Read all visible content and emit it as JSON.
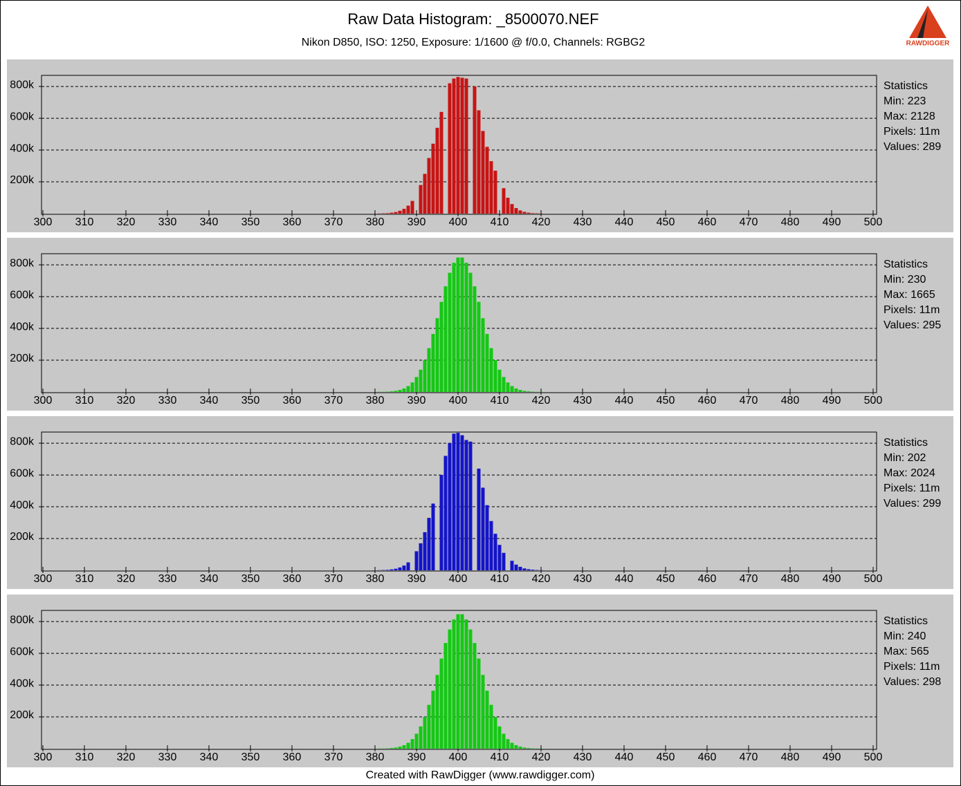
{
  "title": "Raw Data Histogram:  _8500070.NEF",
  "subtitle": "Nikon D850, ISO: 1250, Exposure: 1/1600 @ f/0.0, Channels: RGBG2",
  "logo": "RAWDIGGER",
  "footer": "Created with RawDigger (www.rawdigger.com)",
  "chart_data": [
    {
      "type": "bar",
      "color": "#c81414",
      "x": [
        380,
        381,
        382,
        383,
        384,
        385,
        386,
        387,
        388,
        389,
        390,
        391,
        392,
        393,
        394,
        395,
        396,
        397,
        398,
        399,
        400,
        401,
        402,
        403,
        404,
        405,
        406,
        407,
        408,
        409,
        410,
        411,
        412,
        413,
        414,
        415,
        416,
        417,
        418,
        419,
        420,
        421,
        422
      ],
      "values": [
        0,
        1000,
        2000,
        3000,
        6000,
        10000,
        18000,
        30000,
        50000,
        80000,
        0,
        180000,
        250000,
        350000,
        440000,
        540000,
        640000,
        0,
        820000,
        850000,
        860000,
        855000,
        850000,
        0,
        800000,
        650000,
        520000,
        420000,
        330000,
        270000,
        0,
        160000,
        100000,
        60000,
        35000,
        20000,
        11000,
        6000,
        3000,
        2000,
        1000,
        0,
        0
      ],
      "xlim": [
        300,
        500
      ],
      "xticks": [
        300,
        310,
        320,
        330,
        340,
        350,
        360,
        370,
        380,
        390,
        400,
        410,
        420,
        430,
        440,
        450,
        460,
        470,
        480,
        490,
        500
      ],
      "ylim": [
        0,
        870000
      ],
      "yticks": [
        {
          "value": 200000,
          "label": "200k"
        },
        {
          "value": 400000,
          "label": "400k"
        },
        {
          "value": 600000,
          "label": "600k"
        },
        {
          "value": 800000,
          "label": "800k"
        }
      ],
      "grid": true,
      "stats": [
        "Statistics",
        "Min: 223",
        "Max: 2128",
        "Pixels: 11m",
        "Values: 289"
      ]
    },
    {
      "type": "bar",
      "color": "#14c814",
      "x": [
        380,
        381,
        382,
        383,
        384,
        385,
        386,
        387,
        388,
        389,
        390,
        391,
        392,
        393,
        394,
        395,
        396,
        397,
        398,
        399,
        400,
        401,
        402,
        403,
        404,
        405,
        406,
        407,
        408,
        409,
        410,
        411,
        412,
        413,
        414,
        415,
        416,
        417,
        418,
        419,
        420,
        421,
        422
      ],
      "values": [
        0,
        1000,
        1000,
        2000,
        4000,
        7000,
        13000,
        22000,
        37000,
        60000,
        94000,
        140000,
        200000,
        276000,
        365000,
        464000,
        567000,
        665000,
        750000,
        813000,
        846000,
        846000,
        813000,
        750000,
        665000,
        567000,
        464000,
        365000,
        276000,
        200000,
        140000,
        94000,
        60000,
        37000,
        22000,
        13000,
        7000,
        4000,
        2000,
        1000,
        1000,
        0,
        0
      ],
      "xlim": [
        300,
        500
      ],
      "xticks": [
        300,
        310,
        320,
        330,
        340,
        350,
        360,
        370,
        380,
        390,
        400,
        410,
        420,
        430,
        440,
        450,
        460,
        470,
        480,
        490,
        500
      ],
      "ylim": [
        0,
        870000
      ],
      "yticks": [
        {
          "value": 200000,
          "label": "200k"
        },
        {
          "value": 400000,
          "label": "400k"
        },
        {
          "value": 600000,
          "label": "600k"
        },
        {
          "value": 800000,
          "label": "800k"
        }
      ],
      "grid": true,
      "stats": [
        "Statistics",
        "Min: 230",
        "Max: 1665",
        "Pixels: 11m",
        "Values: 295"
      ]
    },
    {
      "type": "bar",
      "color": "#1414c8",
      "x": [
        380,
        381,
        382,
        383,
        384,
        385,
        386,
        387,
        388,
        389,
        390,
        391,
        392,
        393,
        394,
        395,
        396,
        397,
        398,
        399,
        400,
        401,
        402,
        403,
        404,
        405,
        406,
        407,
        408,
        409,
        410,
        411,
        412,
        413,
        414,
        415,
        416,
        417,
        418,
        419,
        420,
        421,
        422
      ],
      "values": [
        0,
        1000,
        2000,
        3000,
        6000,
        10000,
        18000,
        30000,
        50000,
        0,
        120000,
        170000,
        240000,
        330000,
        420000,
        0,
        600000,
        720000,
        800000,
        860000,
        865000,
        850000,
        820000,
        810000,
        0,
        640000,
        520000,
        410000,
        310000,
        230000,
        160000,
        110000,
        0,
        60000,
        36000,
        22000,
        12000,
        7000,
        4000,
        2000,
        1000,
        0,
        0
      ],
      "xlim": [
        300,
        500
      ],
      "xticks": [
        300,
        310,
        320,
        330,
        340,
        350,
        360,
        370,
        380,
        390,
        400,
        410,
        420,
        430,
        440,
        450,
        460,
        470,
        480,
        490,
        500
      ],
      "ylim": [
        0,
        870000
      ],
      "yticks": [
        {
          "value": 200000,
          "label": "200k"
        },
        {
          "value": 400000,
          "label": "400k"
        },
        {
          "value": 600000,
          "label": "600k"
        },
        {
          "value": 800000,
          "label": "800k"
        }
      ],
      "grid": true,
      "stats": [
        "Statistics",
        "Min: 202",
        "Max: 2024",
        "Pixels: 11m",
        "Values: 299"
      ]
    },
    {
      "type": "bar",
      "color": "#14c814",
      "x": [
        380,
        381,
        382,
        383,
        384,
        385,
        386,
        387,
        388,
        389,
        390,
        391,
        392,
        393,
        394,
        395,
        396,
        397,
        398,
        399,
        400,
        401,
        402,
        403,
        404,
        405,
        406,
        407,
        408,
        409,
        410,
        411,
        412,
        413,
        414,
        415,
        416,
        417,
        418,
        419,
        420,
        421,
        422
      ],
      "values": [
        0,
        1000,
        1000,
        2000,
        4000,
        7000,
        13000,
        22000,
        37000,
        60000,
        94000,
        140000,
        200000,
        276000,
        365000,
        464000,
        567000,
        665000,
        750000,
        813000,
        846000,
        846000,
        813000,
        750000,
        665000,
        567000,
        464000,
        365000,
        276000,
        200000,
        140000,
        94000,
        60000,
        37000,
        22000,
        13000,
        7000,
        4000,
        2000,
        1000,
        1000,
        0,
        0
      ],
      "xlim": [
        300,
        500
      ],
      "xticks": [
        300,
        310,
        320,
        330,
        340,
        350,
        360,
        370,
        380,
        390,
        400,
        410,
        420,
        430,
        440,
        450,
        460,
        470,
        480,
        490,
        500
      ],
      "ylim": [
        0,
        870000
      ],
      "yticks": [
        {
          "value": 200000,
          "label": "200k"
        },
        {
          "value": 400000,
          "label": "400k"
        },
        {
          "value": 600000,
          "label": "600k"
        },
        {
          "value": 800000,
          "label": "800k"
        }
      ],
      "grid": true,
      "stats": [
        "Statistics",
        "Min: 240",
        "Max: 565",
        "Pixels: 11m",
        "Values: 298"
      ]
    }
  ]
}
